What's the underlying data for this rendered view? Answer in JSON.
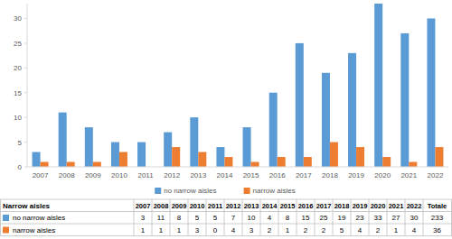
{
  "chart_data": {
    "type": "bar",
    "categories": [
      "2007",
      "2008",
      "2009",
      "2010",
      "2011",
      "2012",
      "2013",
      "2014",
      "2015",
      "2016",
      "2017",
      "2018",
      "2019",
      "2020",
      "2021",
      "2022"
    ],
    "series": [
      {
        "name": "no narrow aisles",
        "color": "#5b9bd5",
        "values": [
          3,
          11,
          8,
          5,
          5,
          7,
          10,
          4,
          8,
          15,
          25,
          19,
          23,
          33,
          27,
          30
        ]
      },
      {
        "name": "narrow aisles",
        "color": "#ed7d31",
        "values": [
          1,
          1,
          1,
          3,
          0,
          4,
          3,
          2,
          1,
          2,
          2,
          5,
          4,
          2,
          1,
          4
        ]
      }
    ],
    "ylim": [
      0,
      33
    ],
    "yticks": [
      0,
      5,
      10,
      15,
      20,
      25,
      30
    ],
    "grid": false,
    "legend": "bottom"
  },
  "table": {
    "header": "Narrow aisles",
    "total_label": "Totale",
    "totals": [
      233,
      36
    ]
  }
}
